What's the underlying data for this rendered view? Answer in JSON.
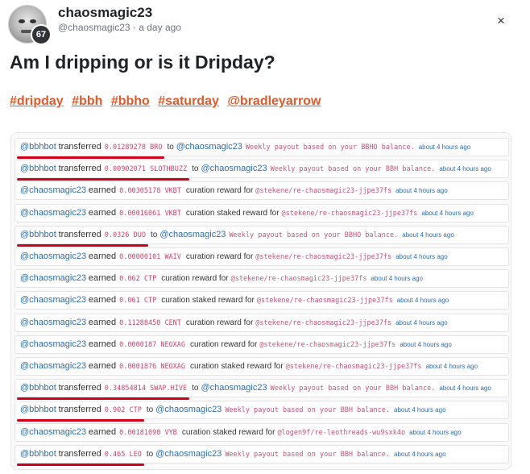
{
  "post": {
    "username": "chaosmagic23",
    "handle": "@chaosmagic23",
    "time": "a day ago",
    "reputation": "67",
    "title": "Am I dripping or is it Dripday?",
    "tags": [
      "#dripday",
      "#bbh",
      "#bbho",
      "#saturday",
      "@bradleyarrow"
    ],
    "close_icon": "×"
  },
  "transfers": [
    {
      "kind": "transfer",
      "account": "@bbhbot",
      "verb": "transferred",
      "amount": "0.01289278 BRO",
      "to_label": "to",
      "target": "@chaosmagic23",
      "memo": "Weekly payout based on your BBHO balance.",
      "time": "about 4 hours ago",
      "highlighted": true
    },
    {
      "kind": "transfer",
      "account": "@bbhbot",
      "verb": "transferred",
      "amount": "0.00902071 SLOTHBUZZ",
      "to_label": "to",
      "target": "@chaosmagic23",
      "memo": "Weekly payout based on your BBH balance.",
      "time": "about 4 hours ago",
      "highlighted": true
    },
    {
      "kind": "curation",
      "account": "@chaosmagic23",
      "verb": "earned",
      "amount": "0.00305178 VKBT",
      "reward": "curation reward for",
      "permlink": "@stekene/re-chaosmagic23-jjpe37fs",
      "time": "about 4 hours ago",
      "highlighted": false
    },
    {
      "kind": "curation",
      "account": "@chaosmagic23",
      "verb": "earned",
      "amount": "0.00016061 VKBT",
      "reward": "curation staked reward for",
      "permlink": "@stekene/re-chaosmagic23-jjpe37fs",
      "time": "about 4 hours ago",
      "highlighted": false
    },
    {
      "kind": "transfer",
      "account": "@bbhbot",
      "verb": "transferred",
      "amount": "0.0326 DUO",
      "to_label": "to",
      "target": "@chaosmagic23",
      "memo": "Weekly payout based on your BBHO balance.",
      "time": "about 4 hours ago",
      "highlighted": true
    },
    {
      "kind": "curation",
      "account": "@chaosmagic23",
      "verb": "earned",
      "amount": "0.00000101 WAIV",
      "reward": "curation reward for",
      "permlink": "@stekene/re-chaosmagic23-jjpe37fs",
      "time": "about 4 hours ago",
      "highlighted": false
    },
    {
      "kind": "curation",
      "account": "@chaosmagic23",
      "verb": "earned",
      "amount": "0.062 CTP",
      "reward": "curation reward for",
      "permlink": "@stekene/re-chaosmagic23-jjpe37fs",
      "time": "about 4 hours ago",
      "highlighted": false
    },
    {
      "kind": "curation",
      "account": "@chaosmagic23",
      "verb": "earned",
      "amount": "0.061 CTP",
      "reward": "curation staked reward for",
      "permlink": "@stekene/re-chaosmagic23-jjpe37fs",
      "time": "about 4 hours ago",
      "highlighted": false
    },
    {
      "kind": "curation",
      "account": "@chaosmagic23",
      "verb": "earned",
      "amount": "0.11288450 CENT",
      "reward": "curation reward for",
      "permlink": "@stekene/re-chaosmagic23-jjpe37fs",
      "time": "about 4 hours ago",
      "highlighted": false
    },
    {
      "kind": "curation",
      "account": "@chaosmagic23",
      "verb": "earned",
      "amount": "0.0000187 NEOXAG",
      "reward": "curation reward for",
      "permlink": "@stekene/re-chaosmagic23-jjpe37fs",
      "time": "about 4 hours ago",
      "highlighted": false
    },
    {
      "kind": "curation",
      "account": "@chaosmagic23",
      "verb": "earned",
      "amount": "0.0001876 NEOXAG",
      "reward": "curation staked reward for",
      "permlink": "@stekene/re-chaosmagic23-jjpe37fs",
      "time": "about 4 hours ago",
      "highlighted": false
    },
    {
      "kind": "transfer",
      "account": "@bbhbot",
      "verb": "transferred",
      "amount": "0.34854814 SWAP.HIVE",
      "to_label": "to",
      "target": "@chaosmagic23",
      "memo": "Weekly payout based on your BBH balance.",
      "time": "about 4 hours ago",
      "highlighted": true
    },
    {
      "kind": "transfer",
      "account": "@bbhbot",
      "verb": "transferred",
      "amount": "0.902 CTP",
      "to_label": "to",
      "target": "@chaosmagic23",
      "memo": "Weekly payout based on your BBH balance.",
      "time": "about 4 hours ago",
      "highlighted": true
    },
    {
      "kind": "curation",
      "account": "@chaosmagic23",
      "verb": "earned",
      "amount": "0.00181090 VYB",
      "reward": "curation staked reward for",
      "permlink": "@logen9f/re-leothreads-wu9sxk4o",
      "time": "about 4 hours ago",
      "highlighted": false
    },
    {
      "kind": "transfer",
      "account": "@bbhbot",
      "verb": "transferred",
      "amount": "0.465 LEO",
      "to_label": "to",
      "target": "@chaosmagic23",
      "memo": "Weekly payout based on your BBH balance.",
      "time": "about 4 hours ago",
      "highlighted": true
    }
  ],
  "colors": {
    "tag": "#e05a2b",
    "account": "#2b6cb0",
    "amount": "#d0416a",
    "highlight": "#d0021b"
  }
}
